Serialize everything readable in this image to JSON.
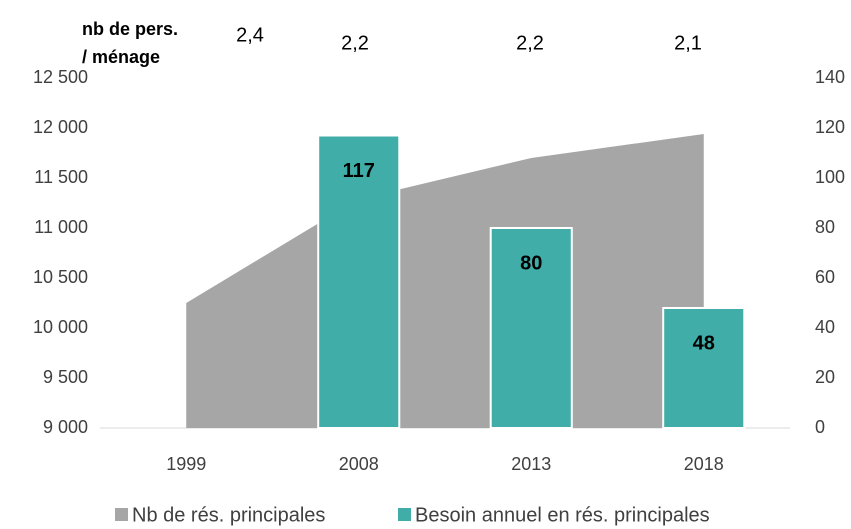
{
  "chart_data": {
    "type": "combo",
    "title_lines": [
      "nb de pers.",
      "/ ménage"
    ],
    "annotations": [
      "2,4",
      "2,2",
      "2,2",
      "2,1"
    ],
    "categories": [
      "1999",
      "2008",
      "2013",
      "2018"
    ],
    "series": [
      {
        "name": "Nb de rés. principales",
        "type": "area",
        "color": "#a6a6a6",
        "values": [
          10250,
          11290,
          11700,
          11940
        ]
      },
      {
        "name": "Besoin annuel en rés. principales",
        "type": "bar",
        "axis": "y2",
        "color": "#40ada8",
        "values": [
          null,
          117,
          80,
          48
        ]
      }
    ],
    "ylim": [
      9000,
      12500
    ],
    "yticks": [
      {
        "value": 9000,
        "label": "9 000"
      },
      {
        "value": 9500,
        "label": "9 500"
      },
      {
        "value": 10000,
        "label": "10 000"
      },
      {
        "value": 10500,
        "label": "10 500"
      },
      {
        "value": 11000,
        "label": "11 000"
      },
      {
        "value": 11500,
        "label": "11 500"
      },
      {
        "value": 12000,
        "label": "12 000"
      },
      {
        "value": 12500,
        "label": "12 500"
      }
    ],
    "y2lim": [
      0,
      140
    ],
    "y2ticks": [
      0,
      20,
      40,
      60,
      80,
      100,
      120,
      140
    ],
    "legend": "bottom"
  }
}
